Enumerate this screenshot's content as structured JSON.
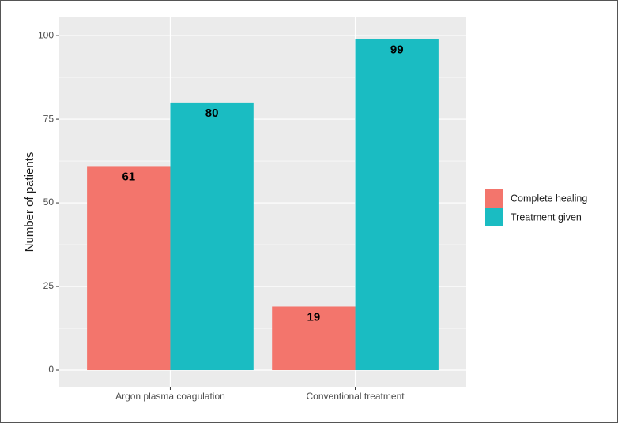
{
  "chart_data": {
    "type": "bar",
    "y_label": "Number of patients",
    "categories": [
      "Argon plasma coagulation",
      "Conventional treatment"
    ],
    "series": [
      {
        "name": "Complete healing",
        "color": "#f3756c",
        "values": [
          61,
          19
        ]
      },
      {
        "name": "Treatment given",
        "color": "#1abcc2",
        "values": [
          80,
          99
        ]
      }
    ],
    "ylim": [
      -4.95,
      105.45
    ],
    "yticks": [
      0,
      25,
      50,
      75,
      100
    ],
    "grid": true,
    "legend": "right"
  }
}
